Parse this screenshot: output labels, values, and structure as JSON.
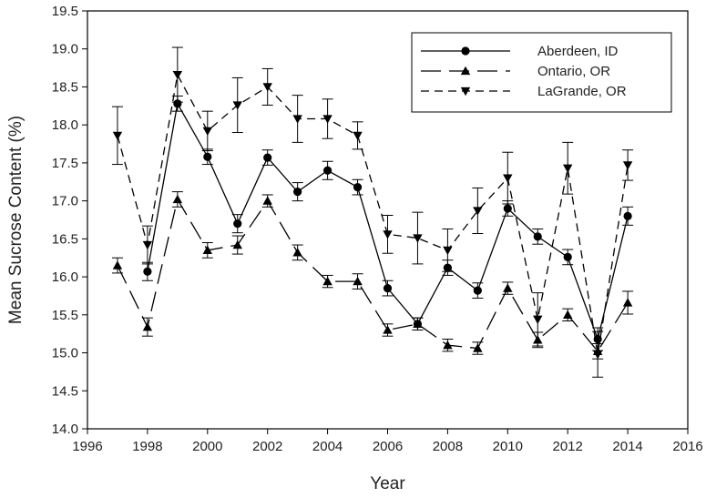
{
  "chart_data": {
    "type": "line",
    "title": "",
    "xlabel": "Year",
    "ylabel": "Mean Sucrose Content (%)",
    "xlim": [
      1996,
      2016
    ],
    "ylim": [
      14.0,
      19.5
    ],
    "x_ticks": [
      "1996",
      "1998",
      "2000",
      "2002",
      "2004",
      "2006",
      "2008",
      "2010",
      "2012",
      "2014",
      "2016"
    ],
    "y_ticks": [
      "14.0",
      "14.5",
      "15.0",
      "15.5",
      "16.0",
      "16.5",
      "17.0",
      "17.5",
      "18.0",
      "18.5",
      "19.0",
      "19.5"
    ],
    "grid": false,
    "legend_position": "top-right",
    "series": [
      {
        "name": "Aberdeen, ID",
        "line_style": "solid",
        "marker": "circle",
        "points": [
          {
            "x": 1998,
            "y": 16.07,
            "err": 0.12
          },
          {
            "x": 1999,
            "y": 18.28,
            "err": 0.1
          },
          {
            "x": 2000,
            "y": 17.58,
            "err": 0.1
          },
          {
            "x": 2001,
            "y": 16.7,
            "err": 0.12
          },
          {
            "x": 2002,
            "y": 17.57,
            "err": 0.1
          },
          {
            "x": 2003,
            "y": 17.12,
            "err": 0.12
          },
          {
            "x": 2004,
            "y": 17.4,
            "err": 0.12
          },
          {
            "x": 2005,
            "y": 17.18,
            "err": 0.1
          },
          {
            "x": 2006,
            "y": 15.85,
            "err": 0.1
          },
          {
            "x": 2007,
            "y": 15.38,
            "err": 0.08
          },
          {
            "x": 2008,
            "y": 16.12,
            "err": 0.1
          },
          {
            "x": 2009,
            "y": 15.82,
            "err": 0.1
          },
          {
            "x": 2010,
            "y": 16.9,
            "err": 0.1
          },
          {
            "x": 2011,
            "y": 16.53,
            "err": 0.1
          },
          {
            "x": 2012,
            "y": 16.26,
            "err": 0.1
          },
          {
            "x": 2013,
            "y": 15.18,
            "err": 0.15
          },
          {
            "x": 2014,
            "y": 16.8,
            "err": 0.12
          }
        ]
      },
      {
        "name": "Ontario, OR",
        "line_style": "long-dash",
        "marker": "triangle-up",
        "points": [
          {
            "x": 1997,
            "y": 16.15,
            "err": 0.1
          },
          {
            "x": 1998,
            "y": 15.34,
            "err": 0.12
          },
          {
            "x": 1999,
            "y": 17.02,
            "err": 0.1
          },
          {
            "x": 2000,
            "y": 16.35,
            "err": 0.1
          },
          {
            "x": 2001,
            "y": 16.42,
            "err": 0.12
          },
          {
            "x": 2002,
            "y": 17.0,
            "err": 0.08
          },
          {
            "x": 2003,
            "y": 16.32,
            "err": 0.1
          },
          {
            "x": 2004,
            "y": 15.94,
            "err": 0.08
          },
          {
            "x": 2005,
            "y": 15.94,
            "err": 0.1
          },
          {
            "x": 2006,
            "y": 15.3,
            "err": 0.08
          },
          {
            "x": 2007,
            "y": 15.38,
            "err": 0.08
          },
          {
            "x": 2008,
            "y": 15.1,
            "err": 0.08
          },
          {
            "x": 2009,
            "y": 15.06,
            "err": 0.08
          },
          {
            "x": 2010,
            "y": 15.85,
            "err": 0.08
          },
          {
            "x": 2011,
            "y": 15.17,
            "err": 0.1
          },
          {
            "x": 2012,
            "y": 15.5,
            "err": 0.08
          },
          {
            "x": 2013,
            "y": 15.02,
            "err": 0.1
          },
          {
            "x": 2014,
            "y": 15.66,
            "err": 0.15
          }
        ]
      },
      {
        "name": "LaGrande, OR",
        "line_style": "short-dash",
        "marker": "triangle-down",
        "points": [
          {
            "x": 1997,
            "y": 17.86,
            "err": 0.38
          },
          {
            "x": 1998,
            "y": 16.42,
            "err": 0.25
          },
          {
            "x": 1999,
            "y": 18.66,
            "err": 0.36
          },
          {
            "x": 2000,
            "y": 17.92,
            "err": 0.26
          },
          {
            "x": 2001,
            "y": 18.26,
            "err": 0.36
          },
          {
            "x": 2002,
            "y": 18.5,
            "err": 0.24
          },
          {
            "x": 2003,
            "y": 18.08,
            "err": 0.31
          },
          {
            "x": 2004,
            "y": 18.08,
            "err": 0.26
          },
          {
            "x": 2005,
            "y": 17.86,
            "err": 0.18
          },
          {
            "x": 2006,
            "y": 16.56,
            "err": 0.25
          },
          {
            "x": 2007,
            "y": 16.51,
            "err": 0.34
          },
          {
            "x": 2008,
            "y": 16.35,
            "err": 0.28
          },
          {
            "x": 2009,
            "y": 16.87,
            "err": 0.3
          },
          {
            "x": 2010,
            "y": 17.3,
            "err": 0.34
          },
          {
            "x": 2011,
            "y": 15.44,
            "err": 0.35
          },
          {
            "x": 2012,
            "y": 17.43,
            "err": 0.34
          },
          {
            "x": 2013,
            "y": 14.98,
            "err": 0.3
          },
          {
            "x": 2014,
            "y": 17.47,
            "err": 0.2
          }
        ]
      }
    ]
  }
}
